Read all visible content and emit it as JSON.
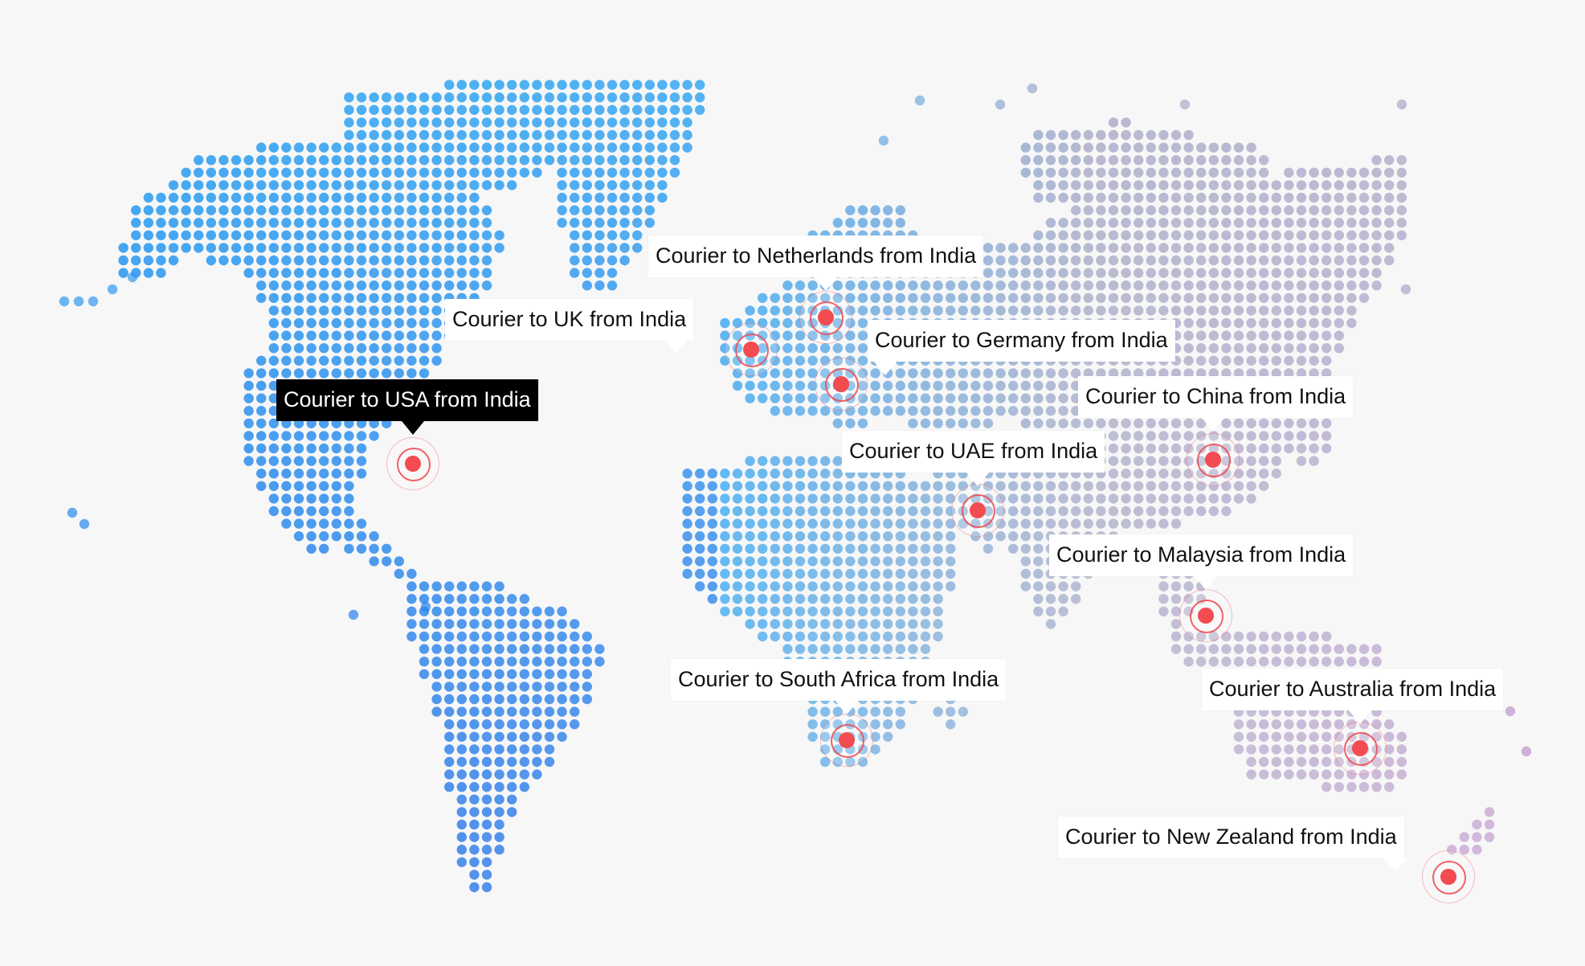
{
  "map": {
    "accent_color": "#f24b50",
    "dot_gradient_colors": [
      "#1d6fe8",
      "#39a8f2",
      "#a7a9c6",
      "#c18ecb"
    ],
    "destinations": [
      {
        "id": "netherlands",
        "label": "Courier to Netherlands from India",
        "active": false
      },
      {
        "id": "uk",
        "label": "Courier to UK from India",
        "active": false
      },
      {
        "id": "germany",
        "label": "Courier to Germany from India",
        "active": false
      },
      {
        "id": "usa",
        "label": "Courier to USA from India",
        "active": true
      },
      {
        "id": "china",
        "label": "Courier to China from India",
        "active": false
      },
      {
        "id": "uae",
        "label": "Courier to UAE from India",
        "active": false
      },
      {
        "id": "malaysia",
        "label": "Courier to Malaysia from India",
        "active": false
      },
      {
        "id": "south-africa",
        "label": "Courier to South Africa from India",
        "active": false
      },
      {
        "id": "australia",
        "label": "Courier to Australia from India",
        "active": false
      },
      {
        "id": "new-zealand",
        "label": "Courier to New Zealand from India",
        "active": false
      }
    ]
  }
}
